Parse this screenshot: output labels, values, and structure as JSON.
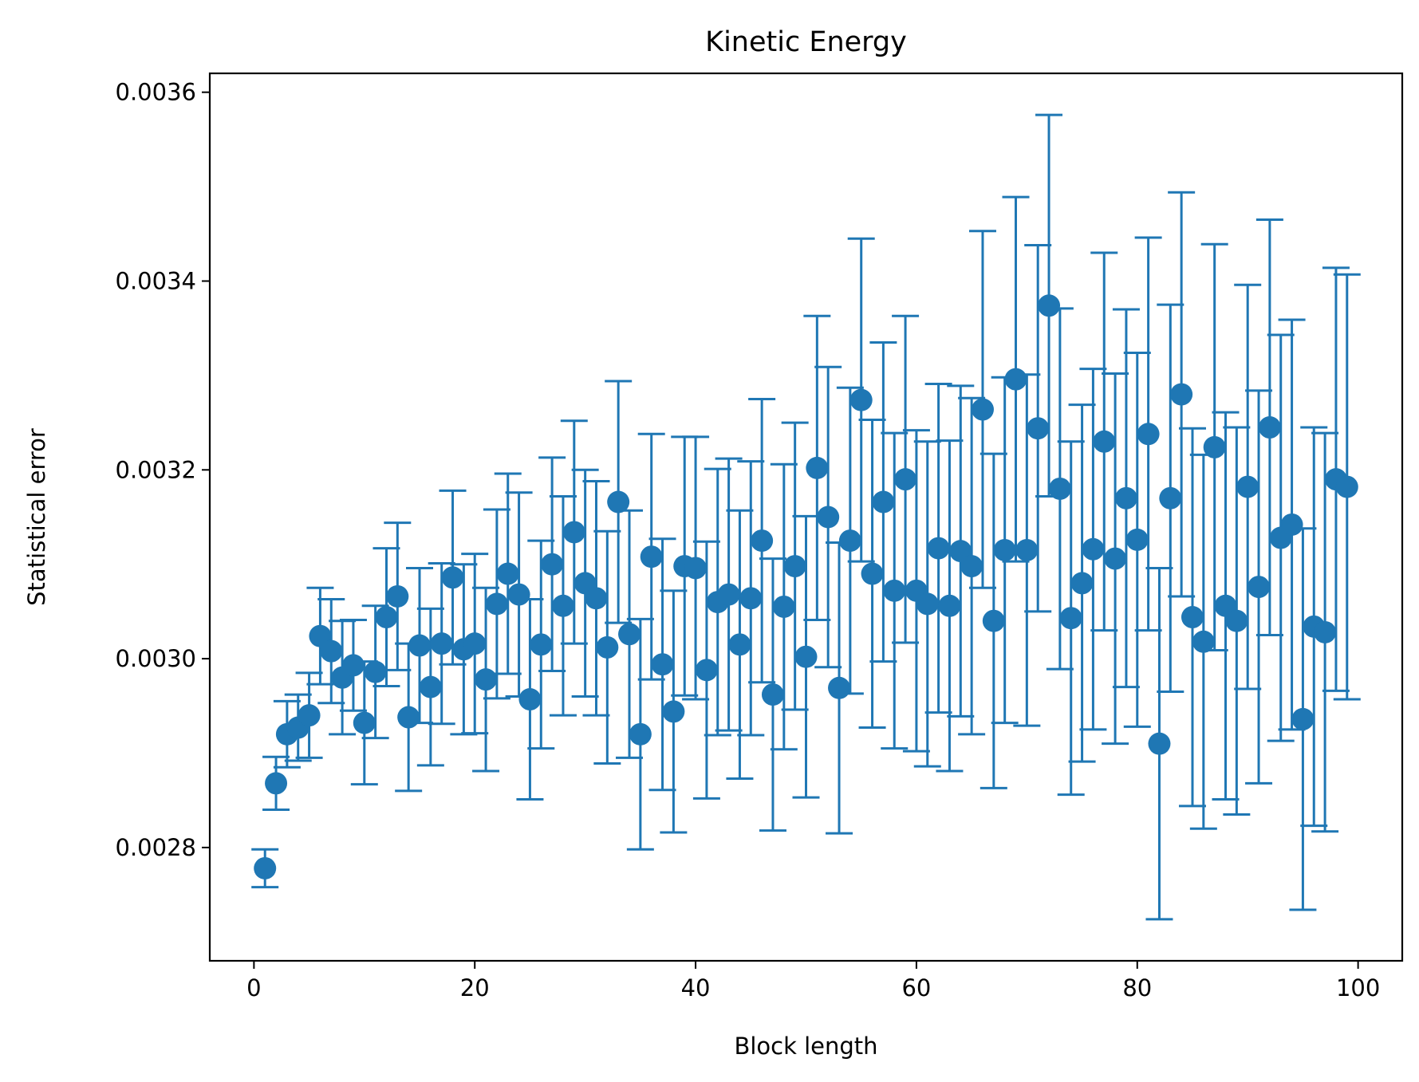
{
  "chart_data": {
    "type": "scatter",
    "title": "Kinetic Energy",
    "xlabel": "Block length",
    "ylabel": "Statistical error",
    "xlim": [
      -4,
      104
    ],
    "ylim": [
      0.00268,
      0.00362
    ],
    "xticks": [
      0,
      20,
      40,
      60,
      80,
      100
    ],
    "xtick_labels": [
      "0",
      "20",
      "40",
      "60",
      "80",
      "100"
    ],
    "yticks": [
      0.0028,
      0.003,
      0.0032,
      0.0034,
      0.0036
    ],
    "ytick_labels": [
      "0.0028",
      "0.0030",
      "0.0032",
      "0.0034",
      "0.0036"
    ],
    "grid": false,
    "legend": "none",
    "series_color": "#1f77b4",
    "series": [
      {
        "x": [
          1,
          2,
          3,
          4,
          5,
          6,
          7,
          8,
          9,
          10,
          11,
          12,
          13,
          14,
          15,
          16,
          17,
          18,
          19,
          20,
          21,
          22,
          23,
          24,
          25,
          26,
          27,
          28,
          29,
          30,
          31,
          32,
          33,
          34,
          35,
          36,
          37,
          38,
          39,
          40,
          41,
          42,
          43,
          44,
          45,
          46,
          47,
          48,
          49,
          50,
          51,
          52,
          53,
          54,
          55,
          56,
          57,
          58,
          59,
          60,
          61,
          62,
          63,
          64,
          65,
          66,
          67,
          68,
          69,
          70,
          71,
          72,
          73,
          74,
          75,
          76,
          77,
          78,
          79,
          80,
          81,
          82,
          83,
          84,
          85,
          86,
          87,
          88,
          89,
          90,
          91,
          92,
          93,
          94,
          95,
          96,
          97,
          98,
          99
        ],
        "y": [
          0.002778,
          0.002868,
          0.00292,
          0.002927,
          0.00294,
          0.003024,
          0.003008,
          0.00298,
          0.002993,
          0.002932,
          0.002986,
          0.003044,
          0.003066,
          0.002938,
          0.003014,
          0.00297,
          0.003016,
          0.003086,
          0.00301,
          0.003016,
          0.002978,
          0.003058,
          0.00309,
          0.003068,
          0.002957,
          0.003015,
          0.0031,
          0.003056,
          0.003134,
          0.00308,
          0.003064,
          0.003012,
          0.003166,
          0.003026,
          0.00292,
          0.003108,
          0.002994,
          0.002944,
          0.003098,
          0.003096,
          0.002988,
          0.00306,
          0.003068,
          0.003015,
          0.003064,
          0.003125,
          0.002962,
          0.003055,
          0.003098,
          0.003002,
          0.003202,
          0.00315,
          0.002969,
          0.003125,
          0.003274,
          0.00309,
          0.003166,
          0.003072,
          0.00319,
          0.003072,
          0.003058,
          0.003117,
          0.003056,
          0.003114,
          0.003098,
          0.003264,
          0.00304,
          0.003115,
          0.003296,
          0.003115,
          0.003244,
          0.003374,
          0.00318,
          0.003043,
          0.00308,
          0.003116,
          0.00323,
          0.003106,
          0.00317,
          0.003126,
          0.003238,
          0.00291,
          0.00317,
          0.00328,
          0.003044,
          0.003018,
          0.003224,
          0.003056,
          0.00304,
          0.003182,
          0.003076,
          0.003245,
          0.003128,
          0.003142,
          0.002936,
          0.003034,
          0.003028,
          0.00319,
          0.003182
        ],
        "yerr": [
          2e-05,
          2.8e-05,
          3.5e-05,
          3.5e-05,
          4.5e-05,
          5.1e-05,
          5.5e-05,
          6e-05,
          4.8e-05,
          6.5e-05,
          7e-05,
          7.3e-05,
          7.8e-05,
          7.8e-05,
          8.2e-05,
          8.3e-05,
          8.5e-05,
          9.2e-05,
          9e-05,
          9.5e-05,
          9.7e-05,
          0.0001,
          0.000106,
          0.000108,
          0.000106,
          0.00011,
          0.000113,
          0.000116,
          0.000118,
          0.00012,
          0.000124,
          0.000123,
          0.000128,
          0.000131,
          0.000122,
          0.00013,
          0.000133,
          0.000128,
          0.000137,
          0.000139,
          0.000136,
          0.000141,
          0.000144,
          0.000142,
          0.000145,
          0.00015,
          0.000144,
          0.000151,
          0.000152,
          0.000149,
          0.000161,
          0.000159,
          0.000154,
          0.000162,
          0.000171,
          0.000163,
          0.000169,
          0.000167,
          0.000173,
          0.00017,
          0.000172,
          0.000174,
          0.000175,
          0.000175,
          0.000178,
          0.000189,
          0.000177,
          0.000183,
          0.000193,
          0.000186,
          0.000194,
          0.000202,
          0.000191,
          0.000187,
          0.000189,
          0.000191,
          0.0002,
          0.000196,
          0.0002,
          0.000198,
          0.000208,
          0.000186,
          0.000205,
          0.000214,
          0.0002,
          0.000198,
          0.000215,
          0.000205,
          0.000205,
          0.000214,
          0.000208,
          0.00022,
          0.000215,
          0.000217,
          0.000202,
          0.000211,
          0.000211,
          0.000224,
          0.000225
        ]
      }
    ]
  }
}
